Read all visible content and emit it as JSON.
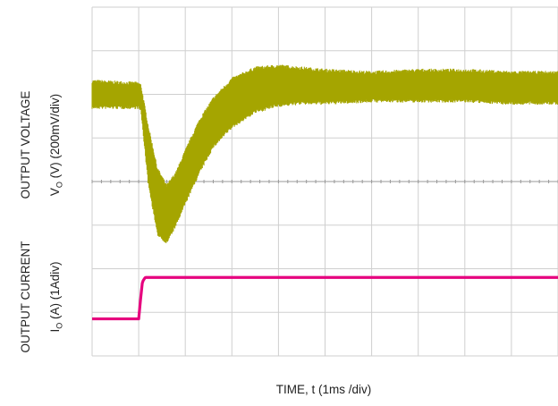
{
  "chart_data": {
    "type": "line",
    "xlabel": "TIME, t (1ms /div)",
    "x_unit": "ms",
    "xlim": [
      0,
      10
    ],
    "x_divisions": 10,
    "y_divisions": 8,
    "grid": true,
    "channels": [
      {
        "title": "OUTPUT VOLTAGE",
        "ylabel": "VO (V) (200mV/div)",
        "scale": "200mV/div",
        "color": "#a5a500",
        "band": "noisy",
        "series_div": {
          "x": [
            0,
            1.0,
            1.05,
            1.2,
            1.4,
            1.6,
            1.8,
            2.0,
            2.3,
            2.6,
            3.0,
            3.5,
            4.0,
            4.5,
            5.0,
            6.0,
            7.0,
            8.0,
            9.0,
            10.0
          ],
          "upper": [
            6.3,
            6.25,
            6.2,
            5.3,
            4.3,
            3.9,
            4.2,
            4.7,
            5.4,
            5.9,
            6.35,
            6.6,
            6.65,
            6.6,
            6.55,
            6.5,
            6.55,
            6.55,
            6.5,
            6.5
          ],
          "lower": [
            5.7,
            5.7,
            5.6,
            4.0,
            2.8,
            2.6,
            3.0,
            3.5,
            4.2,
            4.8,
            5.25,
            5.6,
            5.75,
            5.8,
            5.8,
            5.85,
            5.85,
            5.85,
            5.8,
            5.8
          ]
        }
      },
      {
        "title": "OUTPUT CURRENT",
        "ylabel": "IO (A)  (1Adiv)",
        "scale": "1Adiv",
        "color": "#e6007e",
        "band": "thin",
        "series_div": {
          "x": [
            0,
            1.0,
            1.04,
            1.08,
            1.14,
            10.0
          ],
          "y": [
            0.85,
            0.85,
            1.3,
            1.7,
            1.8,
            1.8
          ]
        }
      }
    ]
  }
}
